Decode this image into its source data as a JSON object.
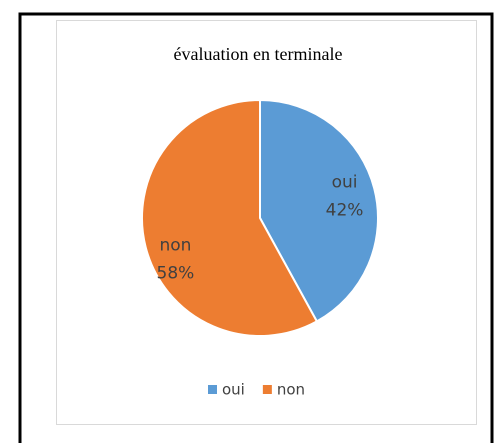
{
  "chart_data": {
    "type": "pie",
    "title": "évaluation en terminale",
    "categories": [
      "oui",
      "non"
    ],
    "values": [
      42,
      58
    ],
    "value_labels": [
      "42%",
      "58%"
    ],
    "colors": [
      "#5b9bd5",
      "#ed7d31"
    ],
    "legend": "bottom"
  }
}
